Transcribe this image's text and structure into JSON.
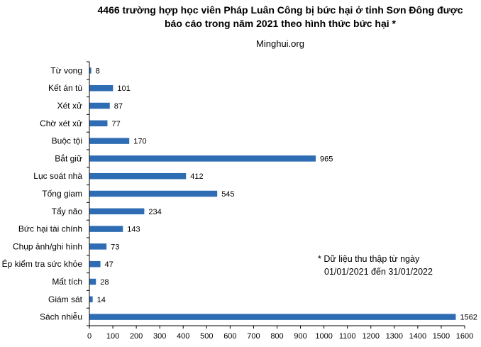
{
  "chart_data": {
    "type": "bar",
    "orientation": "horizontal",
    "title_lines": [
      "4466 trường hợp học viên Pháp Luân Công bị bức hại ở tỉnh Sơn Đông được",
      "báo cáo trong năm 2021 theo hình thức bức hại *"
    ],
    "subtitle": "Minghui.org",
    "categories": [
      "Từ vong",
      "Kết án tù",
      "Xét xử",
      "Chờ xét xử",
      "Buộc tội",
      "Bắt giữ",
      "Lục soát nhà",
      "Tống giam",
      "Tẩy não",
      "Bức hại tài chính",
      "Chụp ảnh/ghi hình",
      "Ép kiểm tra sức khỏe",
      "Mất tích",
      "Giám sát",
      "Sách nhiễu"
    ],
    "values": [
      8,
      101,
      87,
      77,
      170,
      965,
      412,
      545,
      234,
      143,
      73,
      47,
      28,
      14,
      1562
    ],
    "xlim": [
      0,
      1600
    ],
    "xticks": [
      0,
      100,
      200,
      300,
      400,
      500,
      600,
      700,
      800,
      900,
      1000,
      1100,
      1200,
      1300,
      1400,
      1500,
      1600
    ],
    "grid": false,
    "bar_color": "#2E6DB4",
    "annotation_lines": [
      "* Dữ liệu thu thập từ ngày",
      "01/01/2021 đến 31/01/2022"
    ]
  }
}
